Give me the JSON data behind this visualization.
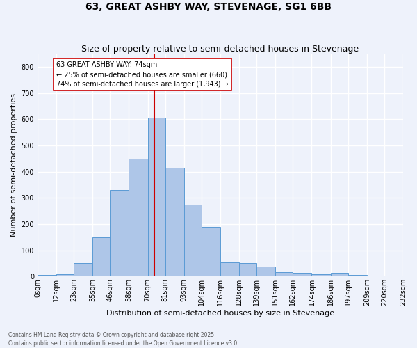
{
  "title": "63, GREAT ASHBY WAY, STEVENAGE, SG1 6BB",
  "subtitle": "Size of property relative to semi-detached houses in Stevenage",
  "xlabel": "Distribution of semi-detached houses by size in Stevenage",
  "ylabel": "Number of semi-detached properties",
  "bin_labels": [
    "0sqm",
    "12sqm",
    "23sqm",
    "35sqm",
    "46sqm",
    "58sqm",
    "70sqm",
    "81sqm",
    "93sqm",
    "104sqm",
    "116sqm",
    "128sqm",
    "139sqm",
    "151sqm",
    "162sqm",
    "174sqm",
    "186sqm",
    "197sqm",
    "209sqm",
    "220sqm",
    "232sqm"
  ],
  "bar_heights": [
    5,
    10,
    50,
    150,
    330,
    450,
    605,
    415,
    275,
    190,
    55,
    50,
    38,
    18,
    15,
    10,
    13,
    5,
    0,
    0
  ],
  "bar_color": "#aec6e8",
  "bar_edge_color": "#5b9bd5",
  "property_line_x": 74,
  "bin_edges": [
    0,
    12,
    23,
    35,
    46,
    58,
    70,
    81,
    93,
    104,
    116,
    128,
    139,
    151,
    162,
    174,
    186,
    197,
    209,
    220,
    232
  ],
  "annotation_title": "63 GREAT ASHBY WAY: 74sqm",
  "annotation_line1": "← 25% of semi-detached houses are smaller (660)",
  "annotation_line2": "74% of semi-detached houses are larger (1,943) →",
  "annotation_box_color": "#ffffff",
  "annotation_box_edge": "#cc0000",
  "vline_color": "#cc0000",
  "ylim": [
    0,
    850
  ],
  "yticks": [
    0,
    100,
    200,
    300,
    400,
    500,
    600,
    700,
    800
  ],
  "footer_line1": "Contains HM Land Registry data © Crown copyright and database right 2025.",
  "footer_line2": "Contains public sector information licensed under the Open Government Licence v3.0.",
  "bg_color": "#eef2fb",
  "grid_color": "#ffffff",
  "title_fontsize": 10,
  "subtitle_fontsize": 9,
  "ylabel_fontsize": 8,
  "xlabel_fontsize": 8,
  "tick_fontsize": 7,
  "ann_fontsize": 7
}
